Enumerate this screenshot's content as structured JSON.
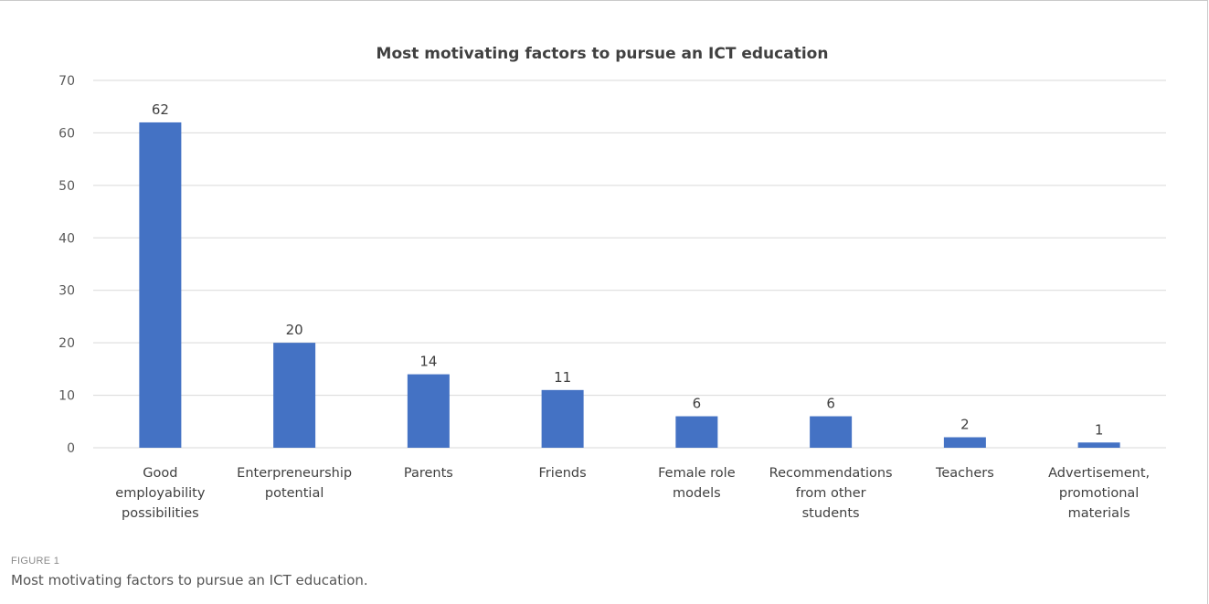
{
  "chart_data": {
    "type": "bar",
    "title": "Most motivating factors to pursue an ICT education",
    "categories": [
      [
        "Good",
        "employability",
        "possibilities"
      ],
      [
        "Enterpreneurship",
        "potential"
      ],
      [
        "Parents"
      ],
      [
        "Friends"
      ],
      [
        "Female role",
        "models"
      ],
      [
        "Recommendations",
        "from other",
        "students"
      ],
      [
        "Teachers"
      ],
      [
        "Advertisement,",
        "promotional",
        "materials"
      ]
    ],
    "values": [
      62,
      20,
      14,
      11,
      6,
      6,
      2,
      1
    ],
    "xlabel": "",
    "ylabel": "",
    "ylim": [
      0,
      70
    ],
    "yticks": [
      0,
      10,
      20,
      30,
      40,
      50,
      60,
      70
    ],
    "grid": true,
    "legend": "none",
    "bar_color": "#4472C4",
    "grid_color": "#d9d9d9"
  },
  "caption": {
    "label": "FIGURE 1",
    "text": "Most motivating factors to pursue an ICT education."
  }
}
